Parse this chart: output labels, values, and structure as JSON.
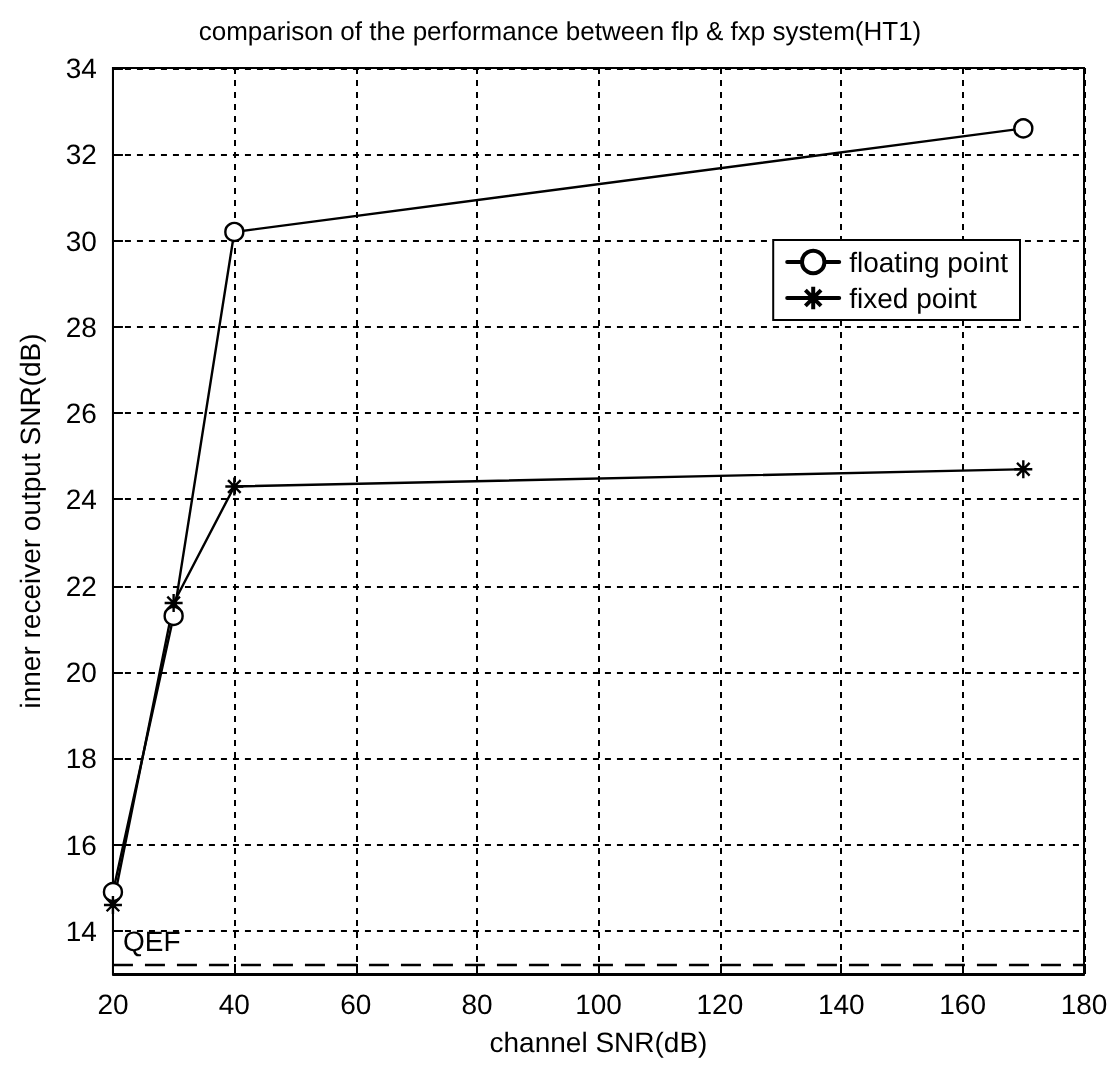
{
  "chart_data": {
    "type": "line",
    "title": "comparison of the performance between flp & fxp system(HT1)",
    "xlabel": "channel SNR(dB)",
    "ylabel": "inner receiver output SNR(dB)",
    "x": [
      20,
      30,
      40,
      170
    ],
    "series": [
      {
        "name": "floating point",
        "color": "#000000",
        "marker": "circle",
        "values": [
          14.9,
          21.3,
          30.2,
          32.6
        ]
      },
      {
        "name": "fixed point",
        "color": "#000000",
        "marker": "cross",
        "values": [
          14.6,
          21.6,
          24.3,
          24.7
        ]
      }
    ],
    "xlim": [
      20,
      180
    ],
    "xticks": [
      20,
      40,
      60,
      80,
      100,
      120,
      140,
      160,
      180
    ],
    "ylim": [
      13,
      34
    ],
    "yticks": [
      14,
      16,
      18,
      20,
      22,
      24,
      26,
      28,
      30,
      32,
      34
    ],
    "ref_lines": [
      {
        "axis": "y",
        "value": 13.2,
        "label": "QEF",
        "color": "#000000",
        "line_style": "dashed"
      }
    ],
    "grid": true,
    "legend": "top right",
    "line_style": "solid"
  }
}
